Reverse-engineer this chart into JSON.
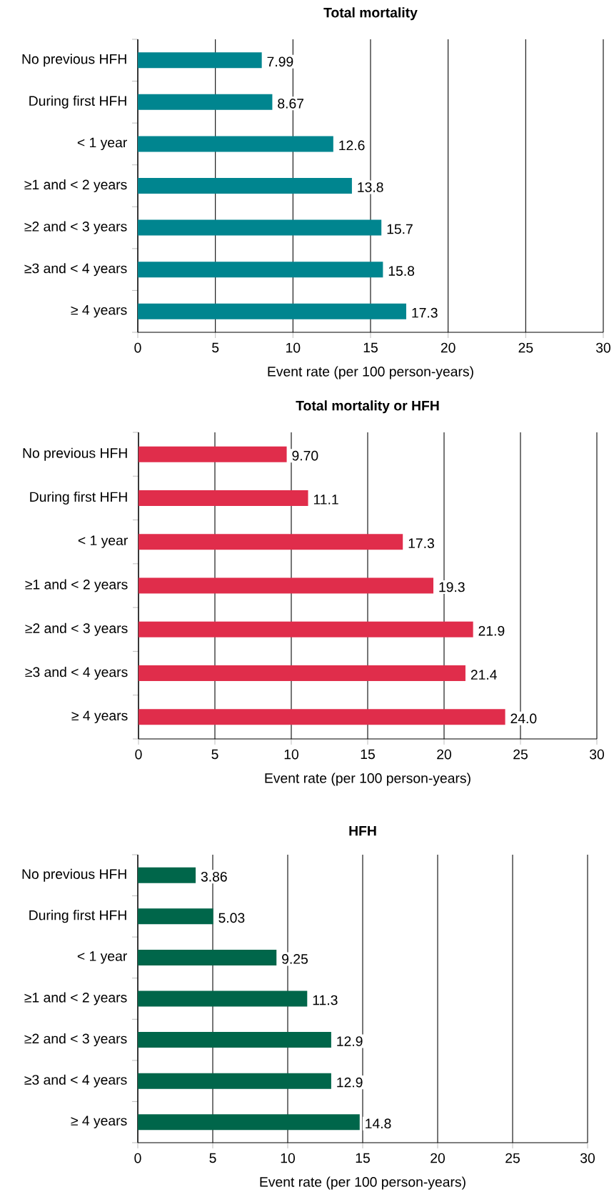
{
  "chart_data": [
    {
      "type": "bar",
      "orientation": "horizontal",
      "title": "Total mortality",
      "xlabel": "Event rate (per 100 person-years)",
      "categories": [
        "No previous HFH",
        "During first HFH",
        "< 1 year",
        "≥1 and < 2 years",
        "≥2 and < 3 years",
        "≥3 and < 4 years",
        "≥ 4 years"
      ],
      "values": [
        7.99,
        8.67,
        12.6,
        13.8,
        15.7,
        15.8,
        17.3
      ],
      "value_labels": [
        "7.99",
        "8.67",
        "12.6",
        "13.8",
        "15.7",
        "15.8",
        "17.3"
      ],
      "color": "#00858f",
      "xlim": [
        0,
        30
      ],
      "xticks": [
        0,
        5,
        10,
        15,
        20,
        25,
        30
      ],
      "grid": "x"
    },
    {
      "type": "bar",
      "orientation": "horizontal",
      "title": "Total mortality or HFH",
      "xlabel": "Event rate (per 100 person-years)",
      "categories": [
        "No previous HFH",
        "During first HFH",
        "< 1 year",
        "≥1 and < 2 years",
        "≥2 and < 3 years",
        "≥3 and < 4 years",
        "≥ 4 years"
      ],
      "values": [
        9.7,
        11.1,
        17.3,
        19.3,
        21.9,
        21.4,
        24.0
      ],
      "value_labels": [
        "9.70",
        "11.1",
        "17.3",
        "19.3",
        "21.9",
        "21.4",
        "24.0"
      ],
      "color": "#e02d4b",
      "xlim": [
        0,
        30
      ],
      "xticks": [
        0,
        5,
        10,
        15,
        20,
        25,
        30
      ],
      "grid": "x"
    },
    {
      "type": "bar",
      "orientation": "horizontal",
      "title": "HFH",
      "xlabel": "Event rate (per 100 person-years)",
      "categories": [
        "No previous HFH",
        "During first HFH",
        "< 1 year",
        "≥1 and < 2 years",
        "≥2 and < 3 years",
        "≥3 and < 4 years",
        "≥ 4 years"
      ],
      "values": [
        3.86,
        5.03,
        9.25,
        11.3,
        12.9,
        12.9,
        14.8
      ],
      "value_labels": [
        "3.86",
        "5.03",
        "9.25",
        "11.3",
        "12.9",
        "12.9",
        "14.8"
      ],
      "color": "#00664a",
      "xlim": [
        0,
        30
      ],
      "xticks": [
        0,
        5,
        10,
        15,
        20,
        25,
        30
      ],
      "grid": "x"
    }
  ]
}
